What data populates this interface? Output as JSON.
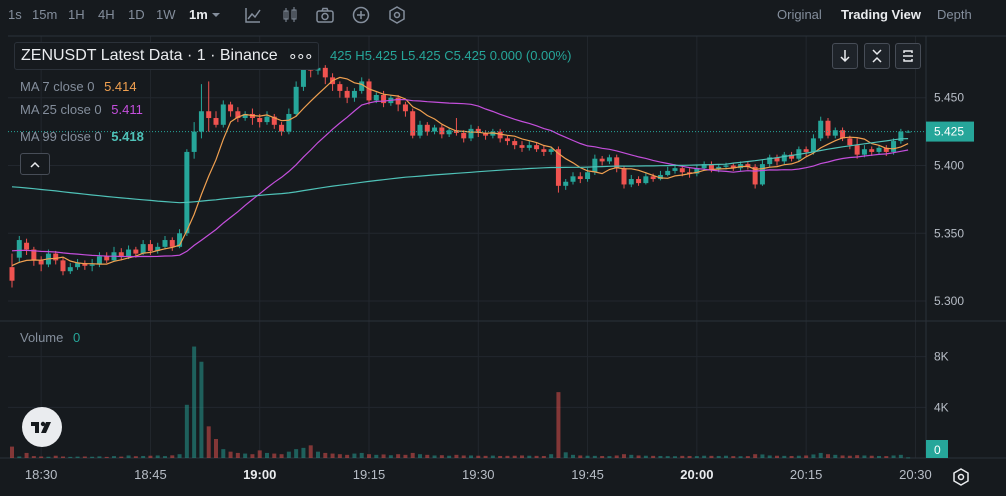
{
  "toolbar": {
    "timeframes": [
      "1s",
      "15m",
      "1H",
      "4H",
      "1D",
      "1W",
      "1m"
    ],
    "active_timeframe": "1m",
    "views": [
      "Original",
      "Trading View",
      "Depth"
    ],
    "active_view": "Trading View"
  },
  "legend": {
    "title": "ZENUSDT Latest Data · 1 · Binance",
    "more": "∘∘∘",
    "ohlc": "425  H5.425  L5.425  C5.425  0.000 (0.00%)",
    "ma7_label": "MA 7 close 0",
    "ma7_value": "5.414",
    "ma25_label": "MA 25 close 0",
    "ma25_value": "5.411",
    "ma99_label": "MA 99 close 0",
    "ma99_value": "5.418",
    "volume_label": "Volume",
    "volume_value": "0"
  },
  "colors": {
    "up": "#26a69a",
    "down": "#ef5350",
    "ma7": "#f0a050",
    "ma25": "#c44fdc",
    "ma99": "#4fc2b8",
    "price_tag": "#26a69a"
  },
  "chart_data": {
    "type": "candlestick",
    "price_axis": {
      "ticks": [
        "5.450",
        "5.400",
        "5.350",
        "5.300"
      ],
      "values": [
        5.45,
        5.4,
        5.35,
        5.3
      ],
      "range": [
        5.2875,
        5.4955
      ]
    },
    "volume_axis": {
      "ticks": [
        "8K",
        "4K",
        "0"
      ],
      "values": [
        8000,
        4000,
        0
      ],
      "max": 10500
    },
    "time_axis": {
      "ticks": [
        "18:30",
        "18:45",
        "19:00",
        "19:15",
        "19:30",
        "19:45",
        "20:00",
        "20:15",
        "20:30"
      ],
      "bold": [
        "19:00",
        "20:00"
      ],
      "start": "18:26",
      "minutes": 126
    },
    "last_price": "5.425",
    "candles": [
      [
        5.325,
        5.315,
        5.335,
        5.31
      ],
      [
        5.332,
        5.345,
        5.348,
        5.328
      ],
      [
        5.343,
        5.338,
        5.346,
        5.334
      ],
      [
        5.338,
        5.33,
        5.34,
        5.326
      ],
      [
        5.33,
        5.327,
        5.333,
        5.322
      ],
      [
        5.327,
        5.335,
        5.338,
        5.325
      ],
      [
        5.335,
        5.33,
        5.337,
        5.327
      ],
      [
        5.33,
        5.322,
        5.332,
        5.319
      ],
      [
        5.322,
        5.325,
        5.328,
        5.32
      ],
      [
        5.325,
        5.328,
        5.331,
        5.323
      ],
      [
        5.328,
        5.326,
        5.33,
        5.323
      ],
      [
        5.326,
        5.327,
        5.331,
        5.322
      ],
      [
        5.327,
        5.333,
        5.336,
        5.325
      ],
      [
        5.333,
        5.33,
        5.336,
        5.328
      ],
      [
        5.33,
        5.336,
        5.34,
        5.329
      ],
      [
        5.336,
        5.333,
        5.339,
        5.33
      ],
      [
        5.333,
        5.338,
        5.341,
        5.331
      ],
      [
        5.338,
        5.335,
        5.34,
        5.332
      ],
      [
        5.335,
        5.342,
        5.345,
        5.334
      ],
      [
        5.342,
        5.337,
        5.345,
        5.334
      ],
      [
        5.337,
        5.34,
        5.343,
        5.335
      ],
      [
        5.34,
        5.345,
        5.348,
        5.338
      ],
      [
        5.345,
        5.34,
        5.347,
        5.337
      ],
      [
        5.34,
        5.35,
        5.353,
        5.339
      ],
      [
        5.35,
        5.41,
        5.412,
        5.348
      ],
      [
        5.41,
        5.425,
        5.432,
        5.405
      ],
      [
        5.425,
        5.44,
        5.46,
        5.42
      ],
      [
        5.44,
        5.435,
        5.462,
        5.425
      ],
      [
        5.435,
        5.43,
        5.44,
        5.428
      ],
      [
        5.43,
        5.445,
        5.448,
        5.428
      ],
      [
        5.445,
        5.44,
        5.447,
        5.436
      ],
      [
        5.44,
        5.435,
        5.443,
        5.432
      ],
      [
        5.435,
        5.438,
        5.44,
        5.433
      ],
      [
        5.438,
        5.435,
        5.442,
        5.43
      ],
      [
        5.435,
        5.432,
        5.438,
        5.428
      ],
      [
        5.432,
        5.436,
        5.44,
        5.43
      ],
      [
        5.436,
        5.43,
        5.438,
        5.427
      ],
      [
        5.43,
        5.425,
        5.432,
        5.422
      ],
      [
        5.425,
        5.438,
        5.442,
        5.423
      ],
      [
        5.438,
        5.458,
        5.462,
        5.436
      ],
      [
        5.458,
        5.475,
        5.48,
        5.455
      ],
      [
        5.475,
        5.47,
        5.478,
        5.465
      ],
      [
        5.47,
        5.472,
        5.476,
        5.467
      ],
      [
        5.472,
        5.465,
        5.474,
        5.46
      ],
      [
        5.465,
        5.46,
        5.468,
        5.455
      ],
      [
        5.46,
        5.455,
        5.462,
        5.45
      ],
      [
        5.455,
        5.45,
        5.458,
        5.446
      ],
      [
        5.45,
        5.455,
        5.457,
        5.447
      ],
      [
        5.455,
        5.462,
        5.465,
        5.453
      ],
      [
        5.462,
        5.448,
        5.464,
        5.445
      ],
      [
        5.448,
        5.452,
        5.454,
        5.446
      ],
      [
        5.452,
        5.446,
        5.455,
        5.443
      ],
      [
        5.446,
        5.45,
        5.452,
        5.444
      ],
      [
        5.45,
        5.445,
        5.452,
        5.44
      ],
      [
        5.445,
        5.44,
        5.447,
        5.436
      ],
      [
        5.44,
        5.422,
        5.442,
        5.42
      ],
      [
        5.422,
        5.43,
        5.433,
        5.42
      ],
      [
        5.43,
        5.425,
        5.432,
        5.422
      ],
      [
        5.425,
        5.428,
        5.43,
        5.423
      ],
      [
        5.428,
        5.423,
        5.43,
        5.42
      ],
      [
        5.423,
        5.426,
        5.428,
        5.421
      ],
      [
        5.426,
        5.424,
        5.435,
        5.422
      ],
      [
        5.424,
        5.42,
        5.426,
        5.417
      ],
      [
        5.42,
        5.427,
        5.43,
        5.418
      ],
      [
        5.427,
        5.424,
        5.429,
        5.421
      ],
      [
        5.424,
        5.422,
        5.426,
        5.419
      ],
      [
        5.422,
        5.425,
        5.427,
        5.42
      ],
      [
        5.425,
        5.42,
        5.427,
        5.417
      ],
      [
        5.42,
        5.418,
        5.422,
        5.415
      ],
      [
        5.418,
        5.415,
        5.42,
        5.412
      ],
      [
        5.415,
        5.413,
        5.418,
        5.41
      ],
      [
        5.413,
        5.415,
        5.418,
        5.411
      ],
      [
        5.415,
        5.412,
        5.417,
        5.41
      ],
      [
        5.412,
        5.41,
        5.415,
        5.407
      ],
      [
        5.41,
        5.412,
        5.414,
        5.408
      ],
      [
        5.412,
        5.385,
        5.414,
        5.38
      ],
      [
        5.385,
        5.388,
        5.39,
        5.382
      ],
      [
        5.388,
        5.392,
        5.395,
        5.386
      ],
      [
        5.392,
        5.39,
        5.395,
        5.387
      ],
      [
        5.39,
        5.395,
        5.398,
        5.388
      ],
      [
        5.395,
        5.405,
        5.408,
        5.393
      ],
      [
        5.405,
        5.403,
        5.407,
        5.4
      ],
      [
        5.403,
        5.406,
        5.408,
        5.401
      ],
      [
        5.406,
        5.398,
        5.408,
        5.395
      ],
      [
        5.398,
        5.386,
        5.4,
        5.383
      ],
      [
        5.386,
        5.39,
        5.393,
        5.384
      ],
      [
        5.39,
        5.387,
        5.392,
        5.385
      ],
      [
        5.387,
        5.392,
        5.395,
        5.386
      ],
      [
        5.392,
        5.39,
        5.394,
        5.388
      ],
      [
        5.39,
        5.393,
        5.396,
        5.389
      ],
      [
        5.393,
        5.396,
        5.399,
        5.392
      ],
      [
        5.396,
        5.398,
        5.401,
        5.394
      ],
      [
        5.398,
        5.395,
        5.4,
        5.392
      ],
      [
        5.395,
        5.394,
        5.398,
        5.391
      ],
      [
        5.394,
        5.398,
        5.4,
        5.392
      ],
      [
        5.398,
        5.401,
        5.403,
        5.396
      ],
      [
        5.401,
        5.397,
        5.403,
        5.395
      ],
      [
        5.397,
        5.399,
        5.401,
        5.395
      ],
      [
        5.399,
        5.4,
        5.402,
        5.397
      ],
      [
        5.4,
        5.398,
        5.402,
        5.396
      ],
      [
        5.398,
        5.401,
        5.403,
        5.396
      ],
      [
        5.401,
        5.399,
        5.403,
        5.397
      ],
      [
        5.399,
        5.386,
        5.401,
        5.383
      ],
      [
        5.386,
        5.401,
        5.404,
        5.385
      ],
      [
        5.401,
        5.406,
        5.408,
        5.399
      ],
      [
        5.406,
        5.403,
        5.408,
        5.4
      ],
      [
        5.403,
        5.408,
        5.41,
        5.401
      ],
      [
        5.408,
        5.405,
        5.41,
        5.403
      ],
      [
        5.405,
        5.412,
        5.414,
        5.403
      ],
      [
        5.412,
        5.41,
        5.414,
        5.407
      ],
      [
        5.41,
        5.42,
        5.423,
        5.408
      ],
      [
        5.42,
        5.433,
        5.436,
        5.418
      ],
      [
        5.433,
        5.422,
        5.435,
        5.42
      ],
      [
        5.422,
        5.426,
        5.428,
        5.42
      ],
      [
        5.426,
        5.42,
        5.428,
        5.418
      ],
      [
        5.42,
        5.415,
        5.422,
        5.412
      ],
      [
        5.415,
        5.408,
        5.42,
        5.405
      ],
      [
        5.408,
        5.412,
        5.415,
        5.406
      ],
      [
        5.412,
        5.41,
        5.414,
        5.407
      ],
      [
        5.41,
        5.413,
        5.415,
        5.408
      ],
      [
        5.413,
        5.41,
        5.415,
        5.407
      ],
      [
        5.41,
        5.418,
        5.42,
        5.408
      ],
      [
        5.418,
        5.425,
        5.427,
        5.416
      ],
      [
        5.425,
        5.425,
        5.426,
        5.424
      ]
    ],
    "volume": [
      900,
      120,
      400,
      150,
      120,
      100,
      180,
      120,
      90,
      110,
      120,
      100,
      130,
      90,
      150,
      110,
      200,
      140,
      160,
      180,
      200,
      150,
      210,
      300,
      4200,
      8800,
      7600,
      2500,
      1500,
      700,
      500,
      400,
      350,
      300,
      600,
      400,
      350,
      300,
      500,
      700,
      800,
      1000,
      500,
      400,
      350,
      300,
      250,
      350,
      400,
      300,
      250,
      280,
      220,
      300,
      250,
      400,
      300,
      250,
      200,
      220,
      180,
      250,
      200,
      200,
      180,
      170,
      190,
      160,
      170,
      180,
      200,
      180,
      170,
      160,
      300,
      5200,
      450,
      250,
      200,
      180,
      170,
      160,
      150,
      200,
      300,
      250,
      200,
      180,
      170,
      160,
      150,
      140,
      170,
      160,
      150,
      180,
      170,
      160,
      180,
      150,
      140,
      150,
      300,
      280,
      200,
      180,
      170,
      160,
      180,
      200,
      280,
      400,
      300,
      250,
      200,
      180,
      220,
      200,
      180,
      160,
      150,
      200,
      250,
      50
    ]
  }
}
